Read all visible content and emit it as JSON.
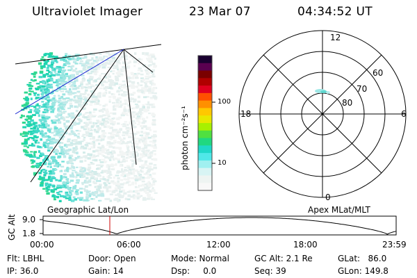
{
  "header": {
    "instrument": "Ultraviolet Imager",
    "date": "23 Mar 07",
    "time": "04:34:52 UT"
  },
  "colorbar": {
    "label": "photon cm⁻²s⁻¹",
    "ticks": [
      "100",
      "10"
    ],
    "colors": [
      "#1a0030",
      "#5a0050",
      "#7a0000",
      "#b00000",
      "#e00020",
      "#ff5000",
      "#ff9000",
      "#ffc800",
      "#e8e800",
      "#a8f000",
      "#50e040",
      "#20d880",
      "#20d8c8",
      "#50e8e8",
      "#a0f0f0",
      "#d8f4f4",
      "#eef4f2",
      "#f8f8f8"
    ]
  },
  "polar": {
    "mlt_labels": [
      "12",
      "18",
      "6",
      "0"
    ],
    "lat_labels": [
      "60",
      "70",
      "80"
    ]
  },
  "timeline": {
    "left_label": "Geographic Lat/Lon",
    "right_label": "Apex MLat/MLT",
    "y_axis_label": "GC Alt",
    "y_ticks": [
      "9.0",
      "1.8"
    ],
    "x_ticks": [
      "00:00",
      "06:00",
      "12:00",
      "18:00",
      "23:59"
    ],
    "marker_color": "#cc0000"
  },
  "status": {
    "row1": {
      "flt": "Flt: LBHL",
      "door": "Door: Open",
      "mode": "Mode: Normal",
      "gcalt": "GC Alt: 2.1 Re",
      "glat": "GLat:   86.0"
    },
    "row2": {
      "ip": "IP: 36.0",
      "gain": "Gain: 14",
      "dsp": "Dsp:     0.0",
      "seq": "Seq: 39",
      "glon": "GLon: 149.8"
    }
  }
}
